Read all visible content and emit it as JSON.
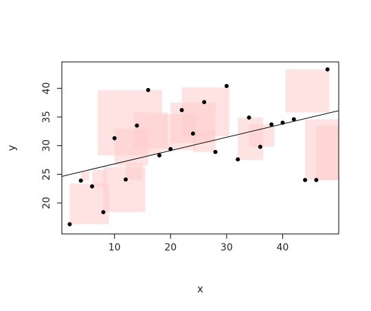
{
  "chart_data": {
    "type": "scatter",
    "xlabel": "x",
    "ylabel": "y",
    "xlim": [
      0.6,
      50
    ],
    "ylim": [
      14.6,
      44.6
    ],
    "xticks": [
      10,
      20,
      30,
      40
    ],
    "yticks": [
      20,
      25,
      30,
      35,
      40
    ],
    "grid": false,
    "x": [
      2,
      4,
      6,
      8,
      10,
      12,
      14,
      16,
      18,
      20,
      22,
      24,
      26,
      28,
      30,
      32,
      34,
      36,
      38,
      40,
      42,
      44,
      46,
      48
    ],
    "y": [
      16.3,
      23.9,
      22.9,
      18.4,
      31.3,
      24.1,
      33.5,
      39.7,
      28.3,
      29.4,
      36.2,
      32.1,
      37.6,
      28.9,
      40.4,
      27.6,
      34.9,
      29.8,
      33.7,
      34.0,
      34.6,
      24.0,
      24.0,
      43.3
    ],
    "fit_line": {
      "intercept": 24.5,
      "slope": 0.232
    },
    "squares": [
      {
        "x0": 2,
        "x1": 9,
        "y0": 16.3,
        "y1": 23.4
      },
      {
        "x0": 4,
        "x1": 5.5,
        "y0": 23.9,
        "y1": 25.5
      },
      {
        "x0": 6,
        "x1": 8.5,
        "y0": 22.9,
        "y1": 25.8
      },
      {
        "x0": 8,
        "x1": 15.5,
        "y0": 18.4,
        "y1": 26.3
      },
      {
        "x0": 7,
        "x1": 18.5,
        "y0": 28.3,
        "y1": 39.7
      },
      {
        "x0": 10,
        "x1": 16,
        "y0": 26.5,
        "y1": 33.0
      },
      {
        "x0": 12,
        "x1": 15,
        "y0": 24.1,
        "y1": 27.0
      },
      {
        "x0": 13.5,
        "x1": 19.5,
        "y0": 29.5,
        "y1": 35.8
      },
      {
        "x0": 18.5,
        "x1": 24.5,
        "y0": 29.2,
        "y1": 35.5
      },
      {
        "x0": 20,
        "x1": 28,
        "y0": 30.5,
        "y1": 37.5
      },
      {
        "x0": 22,
        "x1": 30.5,
        "y0": 31.6,
        "y1": 40.2
      },
      {
        "x0": 24,
        "x1": 28,
        "y0": 28.9,
        "y1": 32.7
      },
      {
        "x0": 32,
        "x1": 36.5,
        "y0": 27.5,
        "y1": 34.9
      },
      {
        "x0": 34,
        "x1": 38.5,
        "y0": 29.8,
        "y1": 33.7
      },
      {
        "x0": 40.5,
        "x1": 48.3,
        "y0": 35.8,
        "y1": 43.3
      },
      {
        "x0": 44,
        "x1": 50,
        "y0": 24.0,
        "y1": 34.6
      },
      {
        "x0": 46,
        "x1": 50,
        "y0": 24.0,
        "y1": 33.5
      }
    ],
    "colors": {
      "point": "#000000",
      "square": "#ffcccc",
      "line": "#000000"
    }
  }
}
